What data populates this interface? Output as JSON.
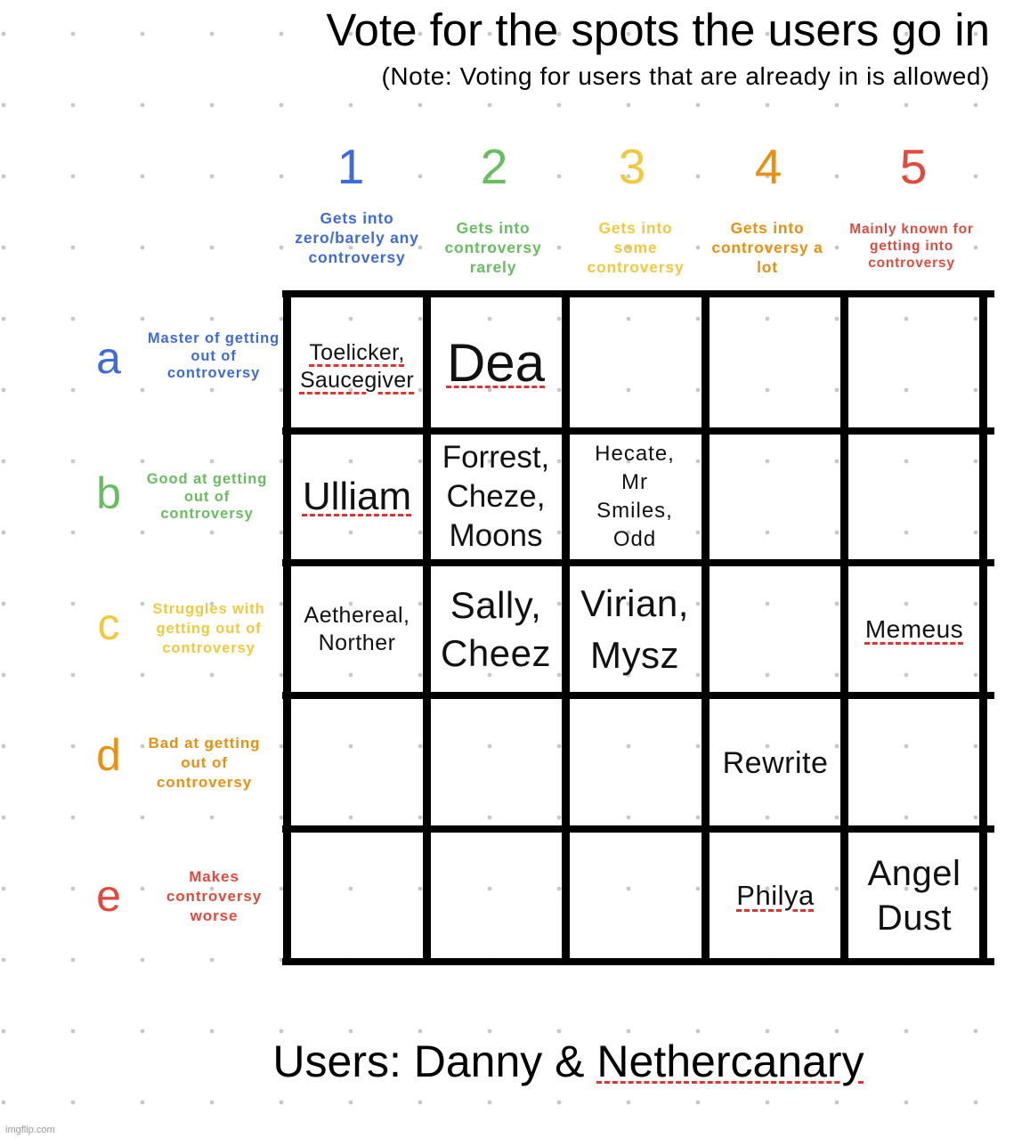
{
  "title": "Vote for the spots the users go in",
  "subtitle": "(Note: Voting for users that are already in is allowed)",
  "columns": [
    {
      "number": "1",
      "description": "Gets into zero/barely any controversy",
      "color": "#3e6bd8"
    },
    {
      "number": "2",
      "description": "Gets into controversy rarely",
      "color": "#67bd60"
    },
    {
      "number": "3",
      "description": "Gets into some controversy",
      "color": "#f0c93e"
    },
    {
      "number": "4",
      "description": "Gets into controversy a lot",
      "color": "#e8900f"
    },
    {
      "number": "5",
      "description": "Mainly known for getting into controversy",
      "color": "#e04a3c"
    }
  ],
  "rows": [
    {
      "letter": "a",
      "description": "Master of getting out of controversy",
      "color": "#3e6bd8"
    },
    {
      "letter": "b",
      "description": "Good at getting out of controversy",
      "color": "#67bd60"
    },
    {
      "letter": "c",
      "description": "Struggles with getting out of controversy",
      "color": "#f0c93e"
    },
    {
      "letter": "d",
      "description": "Bad at getting out of controversy",
      "color": "#e8900f"
    },
    {
      "letter": "e",
      "description": "Makes controversy worse",
      "color": "#e04a3c"
    }
  ],
  "cells": {
    "a1": "Toelicker,\nSaucegiver",
    "a2": "Dea",
    "b1": "Ulliam",
    "b2": "Forrest,\nCheze,\nMoons",
    "b3": "Hecate,\nMr\nSmiles,\nOdd",
    "c1": "Aethereal,\nNorther",
    "c2": "Sally,\nCheez",
    "c3": "Virian,\nMysz",
    "c5": "Memeus",
    "d4": "Rewrite",
    "e4": "Philya",
    "e5": "Angel\nDust"
  },
  "footer": {
    "prefix": "Users: Danny & ",
    "name": "Nethercanary"
  },
  "watermark": "imgflip.com"
}
